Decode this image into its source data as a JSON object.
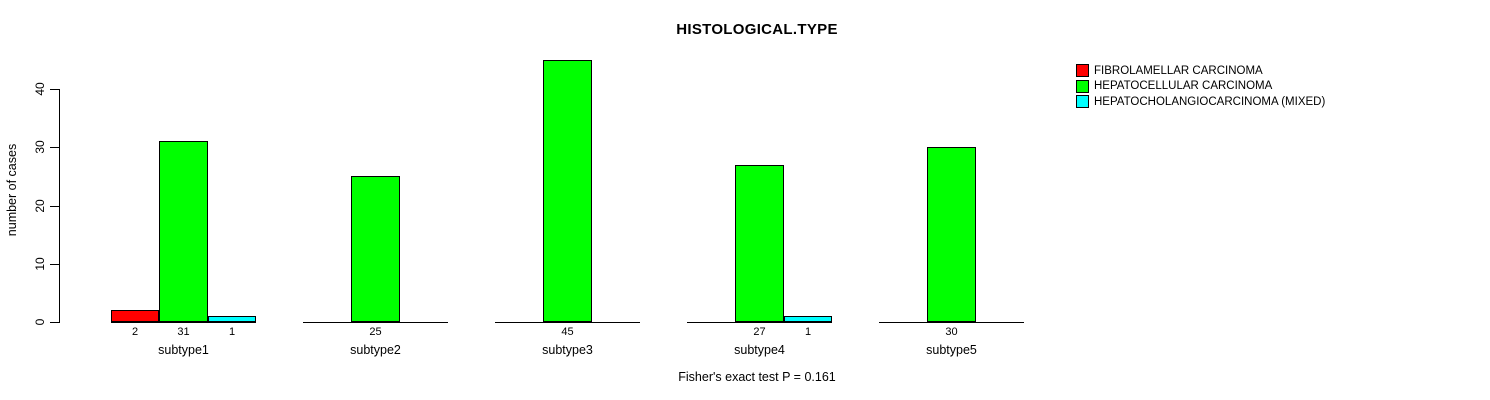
{
  "title": "HISTOLOGICAL.TYPE",
  "chart_data": {
    "type": "bar",
    "title": "HISTOLOGICAL.TYPE",
    "xlabel": "",
    "ylabel": "number of cases",
    "ylim": [
      0,
      45
    ],
    "yticks": [
      0,
      10,
      20,
      30,
      40
    ],
    "grid": false,
    "legend_position": "top-right",
    "categories": [
      "subtype1",
      "subtype2",
      "subtype3",
      "subtype4",
      "subtype5"
    ],
    "series": [
      {
        "name": "FIBROLAMELLAR CARCINOMA",
        "color": "#ff0000",
        "values": [
          2,
          0,
          0,
          0,
          0
        ]
      },
      {
        "name": "HEPATOCELLULAR CARCINOMA",
        "color": "#00ff00",
        "values": [
          31,
          25,
          45,
          27,
          30
        ]
      },
      {
        "name": "HEPATOCHOLANGIOCARCINOMA (MIXED)",
        "color": "#00ffff",
        "values": [
          1,
          0,
          0,
          1,
          0
        ]
      }
    ],
    "bar_value_labels": [
      [
        "2",
        "31",
        "1"
      ],
      [
        "",
        "25",
        ""
      ],
      [
        "",
        "45",
        ""
      ],
      [
        "",
        "27",
        "1"
      ],
      [
        "",
        "30",
        ""
      ]
    ],
    "annotation": "Fisher's exact test P = 0.161"
  }
}
